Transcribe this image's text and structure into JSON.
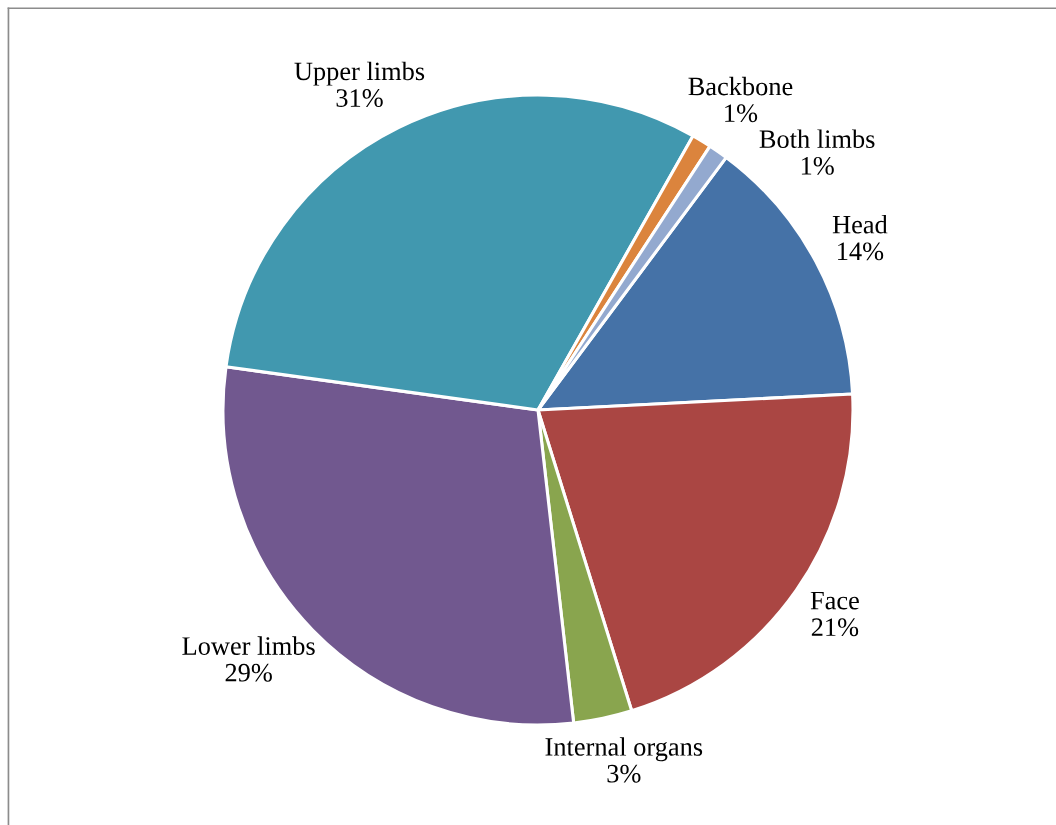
{
  "chart_data": {
    "type": "pie",
    "categories": [
      "Head",
      "Face",
      "Internal organs",
      "Lower limbs",
      "Upper limbs",
      "Backbone",
      "Both limbs"
    ],
    "values": [
      14,
      21,
      3,
      29,
      31,
      1,
      1
    ],
    "value_labels": [
      "14%",
      "21%",
      "3%",
      "29%",
      "31%",
      "1%",
      "1%"
    ],
    "colors": [
      "#4572a7",
      "#aa4643",
      "#89a54e",
      "#71588f",
      "#4198af",
      "#db843d",
      "#93a9cf"
    ]
  }
}
